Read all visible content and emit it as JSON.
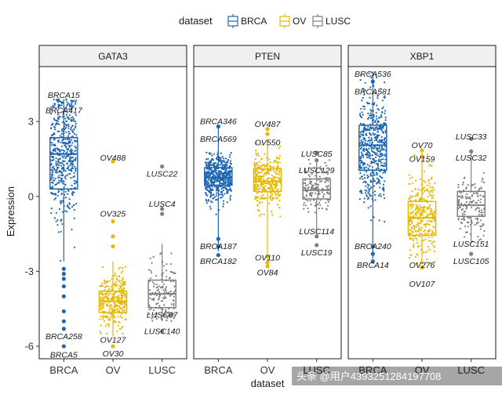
{
  "chart_data": {
    "type": "boxplot-jitter",
    "ylabel": "Expression",
    "xlabel": "dataset",
    "ylim": [
      -6.5,
      5.2
    ],
    "yticks": [
      -6,
      -3,
      0,
      3
    ],
    "ytick_labels": [
      "-6",
      "-3",
      "0",
      "3"
    ],
    "categories": [
      "BRCA",
      "OV",
      "LUSC"
    ],
    "legend": {
      "title": "dataset",
      "entries": [
        "BRCA",
        "OV",
        "LUSC"
      ]
    },
    "colors": {
      "BRCA": "#1f66b0",
      "OV": "#e7b800",
      "LUSC": "#7f7f7f"
    },
    "facets": [
      {
        "title": "GATA3",
        "boxes": [
          {
            "group": "BRCA",
            "q1": 0.3,
            "median": 1.7,
            "q3": 2.35,
            "whisker_low": -2.6,
            "whisker_high": 3.9,
            "n": 520,
            "spread": [
              -2.6,
              3.9
            ]
          },
          {
            "group": "OV",
            "q1": -4.65,
            "median": -4.2,
            "q3": -3.8,
            "whisker_low": -5.6,
            "whisker_high": -2.6,
            "n": 330,
            "spread": [
              -5.6,
              -2.6
            ]
          },
          {
            "group": "LUSC",
            "q1": -4.45,
            "median": -3.9,
            "q3": -3.35,
            "whisker_low": -5.0,
            "whisker_high": -1.9,
            "n": 150,
            "spread": [
              -5.0,
              -1.9
            ]
          }
        ],
        "outliers": [
          {
            "group": "BRCA",
            "y": -2.9
          },
          {
            "group": "BRCA",
            "y": -3.1
          },
          {
            "group": "BRCA",
            "y": -3.3
          },
          {
            "group": "BRCA",
            "y": -3.6
          },
          {
            "group": "BRCA",
            "y": -4.0
          },
          {
            "group": "BRCA",
            "y": -4.6
          },
          {
            "group": "BRCA",
            "y": -5.0
          },
          {
            "group": "BRCA",
            "y": -5.3
          },
          {
            "group": "BRCA",
            "y": -6.0
          },
          {
            "group": "OV",
            "y": 1.4
          },
          {
            "group": "OV",
            "y": -1.0
          },
          {
            "group": "OV",
            "y": -1.6
          },
          {
            "group": "OV",
            "y": -2.0
          },
          {
            "group": "OV",
            "y": -6.0
          },
          {
            "group": "LUSC",
            "y": 1.2
          },
          {
            "group": "LUSC",
            "y": -0.5
          },
          {
            "group": "LUSC",
            "y": -0.7
          },
          {
            "group": "LUSC",
            "y": -5.4
          }
        ],
        "labels": [
          {
            "text": "BRCA15",
            "group": "BRCA",
            "y": 4.05
          },
          {
            "text": "BRCA417",
            "group": "BRCA",
            "y": 3.45
          },
          {
            "text": "OV488",
            "group": "OV",
            "y": 1.55
          },
          {
            "text": "LUSC22",
            "group": "LUSC",
            "y": 0.9
          },
          {
            "text": "LUSC4",
            "group": "LUSC",
            "y": -0.3
          },
          {
            "text": "OV325",
            "group": "OV",
            "y": -0.7
          },
          {
            "text": "LUSC87",
            "group": "LUSC",
            "y": -4.75
          },
          {
            "text": "LUSC140",
            "group": "LUSC",
            "y": -5.4
          },
          {
            "text": "BRCA258",
            "group": "BRCA",
            "y": -5.6
          },
          {
            "text": "OV127",
            "group": "OV",
            "y": -5.75
          },
          {
            "text": "BRCA5",
            "group": "BRCA",
            "y": -6.35
          },
          {
            "text": "OV30",
            "group": "OV",
            "y": -6.3
          }
        ]
      },
      {
        "title": "PTEN",
        "boxes": [
          {
            "group": "BRCA",
            "q1": 0.45,
            "median": 0.75,
            "q3": 1.15,
            "whisker_low": -2.2,
            "whisker_high": 2.75,
            "n": 520,
            "spread": [
              -2.2,
              2.75
            ]
          },
          {
            "group": "OV",
            "q1": 0.2,
            "median": 0.6,
            "q3": 1.1,
            "whisker_low": -2.6,
            "whisker_high": 2.3,
            "n": 330,
            "spread": [
              -2.6,
              2.3
            ]
          },
          {
            "group": "LUSC",
            "q1": -0.1,
            "median": 0.25,
            "q3": 0.7,
            "whisker_low": -1.5,
            "whisker_high": 1.5,
            "n": 150,
            "spread": [
              -1.5,
              1.5
            ]
          }
        ],
        "outliers": [
          {
            "group": "BRCA",
            "y": 2.8
          },
          {
            "group": "BRCA",
            "y": -1.7
          },
          {
            "group": "BRCA",
            "y": -2.0
          },
          {
            "group": "BRCA",
            "y": -2.35
          },
          {
            "group": "OV",
            "y": 2.7
          },
          {
            "group": "OV",
            "y": 2.5
          },
          {
            "group": "OV",
            "y": -2.4
          },
          {
            "group": "OV",
            "y": -2.65
          },
          {
            "group": "OV",
            "y": -2.8
          },
          {
            "group": "LUSC",
            "y": 1.75
          },
          {
            "group": "LUSC",
            "y": 1.45
          },
          {
            "group": "LUSC",
            "y": -1.6
          },
          {
            "group": "LUSC",
            "y": -1.95
          }
        ],
        "labels": [
          {
            "text": "BRCA346",
            "group": "BRCA",
            "y": 3.0
          },
          {
            "text": "BRCA569",
            "group": "BRCA",
            "y": 2.3
          },
          {
            "text": "OV487",
            "group": "OV",
            "y": 2.9
          },
          {
            "text": "OV550",
            "group": "OV",
            "y": 2.15
          },
          {
            "text": "LUSC85",
            "group": "LUSC",
            "y": 1.7
          },
          {
            "text": "LUSC129",
            "group": "LUSC",
            "y": 1.05
          },
          {
            "text": "LUSC114",
            "group": "LUSC",
            "y": -1.4
          },
          {
            "text": "LUSC19",
            "group": "LUSC",
            "y": -2.25
          },
          {
            "text": "BRCA187",
            "group": "BRCA",
            "y": -2.0
          },
          {
            "text": "BRCA182",
            "group": "BRCA",
            "y": -2.6
          },
          {
            "text": "OV110",
            "group": "OV",
            "y": -2.45
          },
          {
            "text": "OV84",
            "group": "OV",
            "y": -3.05
          }
        ]
      },
      {
        "title": "XBP1",
        "boxes": [
          {
            "group": "BRCA",
            "q1": 1.05,
            "median": 2.05,
            "q3": 2.85,
            "whisker_low": -2.5,
            "whisker_high": 5.0,
            "n": 520,
            "spread": [
              -2.5,
              5.0
            ]
          },
          {
            "group": "OV",
            "q1": -1.55,
            "median": -0.85,
            "q3": -0.2,
            "whisker_low": -2.7,
            "whisker_high": 1.8,
            "n": 330,
            "spread": [
              -2.7,
              1.8
            ]
          },
          {
            "group": "LUSC",
            "q1": -0.8,
            "median": -0.35,
            "q3": 0.2,
            "whisker_low": -1.9,
            "whisker_high": 1.9,
            "n": 150,
            "spread": [
              -1.9,
              1.9
            ]
          }
        ],
        "outliers": [
          {
            "group": "BRCA",
            "y": 4.6
          },
          {
            "group": "BRCA",
            "y": -2.0
          },
          {
            "group": "BRCA",
            "y": -2.3
          },
          {
            "group": "BRCA",
            "y": -2.6
          },
          {
            "group": "OV",
            "y": 1.85
          },
          {
            "group": "OV",
            "y": 1.6
          },
          {
            "group": "OV",
            "y": -2.85
          },
          {
            "group": "LUSC",
            "y": 2.3
          },
          {
            "group": "LUSC",
            "y": 1.8
          },
          {
            "group": "LUSC",
            "y": -2.3
          }
        ],
        "labels": [
          {
            "text": "BRCA536",
            "group": "BRCA",
            "y": 4.9
          },
          {
            "text": "BRCA581",
            "group": "BRCA",
            "y": 4.2
          },
          {
            "text": "OV70",
            "group": "OV",
            "y": 2.05
          },
          {
            "text": "OV159",
            "group": "OV",
            "y": 1.5
          },
          {
            "text": "LUSC33",
            "group": "LUSC",
            "y": 2.4
          },
          {
            "text": "LUSC32",
            "group": "LUSC",
            "y": 1.55
          },
          {
            "text": "BRCA240",
            "group": "BRCA",
            "y": -2.0
          },
          {
            "text": "BRCA14",
            "group": "BRCA",
            "y": -2.75
          },
          {
            "text": "LUSC151",
            "group": "LUSC",
            "y": -1.9
          },
          {
            "text": "LUSC105",
            "group": "LUSC",
            "y": -2.6
          },
          {
            "text": "OV276",
            "group": "OV",
            "y": -2.75
          },
          {
            "text": "OV107",
            "group": "OV",
            "y": -3.5
          }
        ]
      }
    ]
  },
  "watermark": "头条 @用户4393251284197708"
}
